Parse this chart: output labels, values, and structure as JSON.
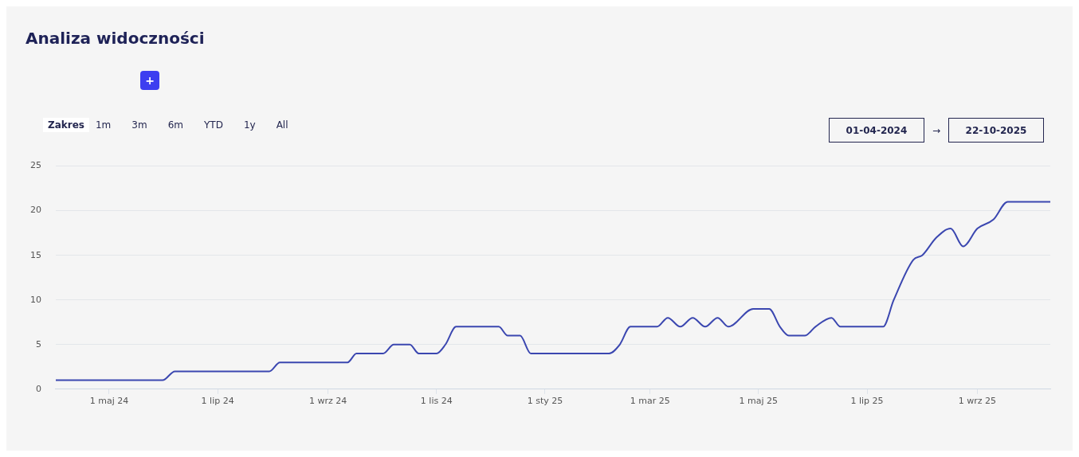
{
  "chart_data": {
    "type": "line",
    "title": "Analiza widoczności",
    "annotations": [
      "Zakres",
      "1m",
      "3m",
      "6m",
      "YTD",
      "1y",
      "All",
      "01-04-2024",
      "→",
      "22-10-2025",
      "+"
    ],
    "x": [
      "2024-04-01",
      "2024-05-31",
      "2024-06-07",
      "2024-07-30",
      "2024-08-05",
      "2024-09-12",
      "2024-09-17",
      "2024-10-02",
      "2024-10-08",
      "2024-10-17",
      "2024-10-22",
      "2024-11-01",
      "2024-11-06",
      "2024-11-12",
      "2024-12-06",
      "2024-12-11",
      "2024-12-18",
      "2024-12-24",
      "2025-02-06",
      "2025-02-12",
      "2025-02-18",
      "2025-03-05",
      "2025-03-11",
      "2025-03-18",
      "2025-03-25",
      "2025-04-01",
      "2025-04-08",
      "2025-04-14",
      "2025-04-28",
      "2025-05-07",
      "2025-05-13",
      "2025-05-18",
      "2025-05-27",
      "2025-06-02",
      "2025-06-11",
      "2025-06-16",
      "2025-07-10",
      "2025-07-16",
      "2025-07-27",
      "2025-08-01",
      "2025-08-09",
      "2025-08-17",
      "2025-08-24",
      "2025-09-01",
      "2025-09-10",
      "2025-09-18",
      "2025-10-12"
    ],
    "series": [
      {
        "color": "#3b47b0",
        "values": [
          1,
          1,
          2,
          2,
          3,
          3,
          4,
          4,
          5,
          5,
          4,
          4,
          5,
          7,
          7,
          6,
          6,
          4,
          4,
          5,
          7,
          7,
          8,
          7,
          8,
          7,
          8,
          7,
          9,
          9,
          7,
          6,
          6,
          7,
          8,
          7,
          7,
          10,
          14.5,
          15,
          17,
          18,
          16,
          18,
          19,
          21,
          21
        ]
      }
    ],
    "xlim": [
      "2024-04-01",
      "2025-10-12"
    ],
    "xticks": [
      {
        "value": "2024-05-01",
        "label": "1 maj 24"
      },
      {
        "value": "2024-07-01",
        "label": "1 lip 24"
      },
      {
        "value": "2024-09-01",
        "label": "1 wrz 24"
      },
      {
        "value": "2024-11-01",
        "label": "1 lis 24"
      },
      {
        "value": "2025-01-01",
        "label": "1 sty 25"
      },
      {
        "value": "2025-03-01",
        "label": "1 mar 25"
      },
      {
        "value": "2025-05-01",
        "label": "1 maj 25"
      },
      {
        "value": "2025-07-01",
        "label": "1 lip 25"
      },
      {
        "value": "2025-09-01",
        "label": "1 wrz 25"
      }
    ],
    "ylim": [
      0,
      25
    ],
    "yticks": [
      0,
      5,
      10,
      15,
      20,
      25
    ],
    "grid": "y",
    "legend": false,
    "marker": "none",
    "line_style": "solid"
  }
}
